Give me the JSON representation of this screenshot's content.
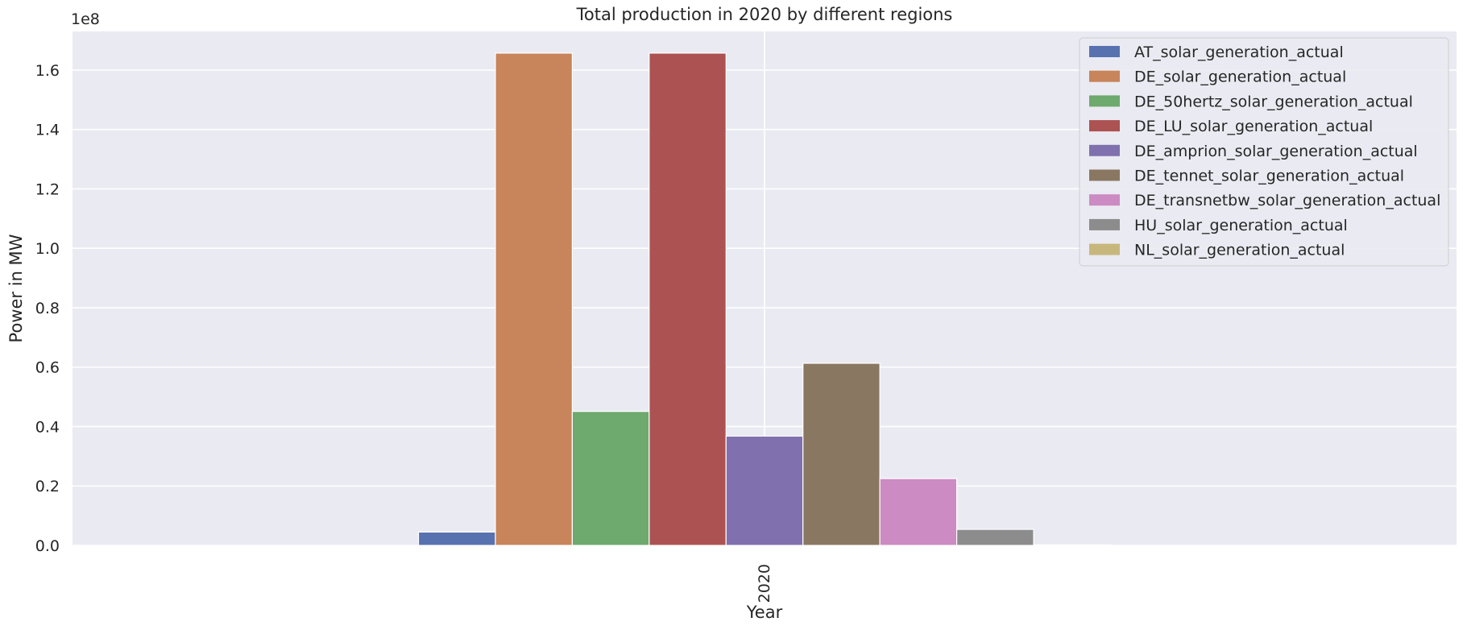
{
  "chart_data": {
    "type": "bar",
    "title": "Total production in 2020 by different regions",
    "xlabel": "Year",
    "ylabel": "Power in MW",
    "offset_label": "1e8",
    "categories": [
      "2020"
    ],
    "ylim": [
      0,
      1.73
    ],
    "yticks": [
      "0.0",
      "0.2",
      "0.4",
      "0.6",
      "0.8",
      "1.0",
      "1.2",
      "1.4",
      "1.6"
    ],
    "grid": true,
    "legend_position": "top-right",
    "series": [
      {
        "name": "AT_solar_generation_actual",
        "values": [
          0.045
        ],
        "color": "#5872b0"
      },
      {
        "name": "DE_solar_generation_actual",
        "values": [
          1.657
        ],
        "color": "#c8845a"
      },
      {
        "name": "DE_50hertz_solar_generation_actual",
        "values": [
          0.451
        ],
        "color": "#6ea96d"
      },
      {
        "name": "DE_LU_solar_generation_actual",
        "values": [
          1.657
        ],
        "color": "#ad5252"
      },
      {
        "name": "DE_amprion_solar_generation_actual",
        "values": [
          0.368
        ],
        "color": "#8071ae"
      },
      {
        "name": "DE_tennet_solar_generation_actual",
        "values": [
          0.613
        ],
        "color": "#8a7762"
      },
      {
        "name": "DE_transnetbw_solar_generation_actual",
        "values": [
          0.225
        ],
        "color": "#cc8bc2"
      },
      {
        "name": "HU_solar_generation_actual",
        "values": [
          0.054
        ],
        "color": "#8c8c8c"
      },
      {
        "name": "NL_solar_generation_actual",
        "values": [
          0.002
        ],
        "color": "#c8b77c"
      }
    ]
  }
}
